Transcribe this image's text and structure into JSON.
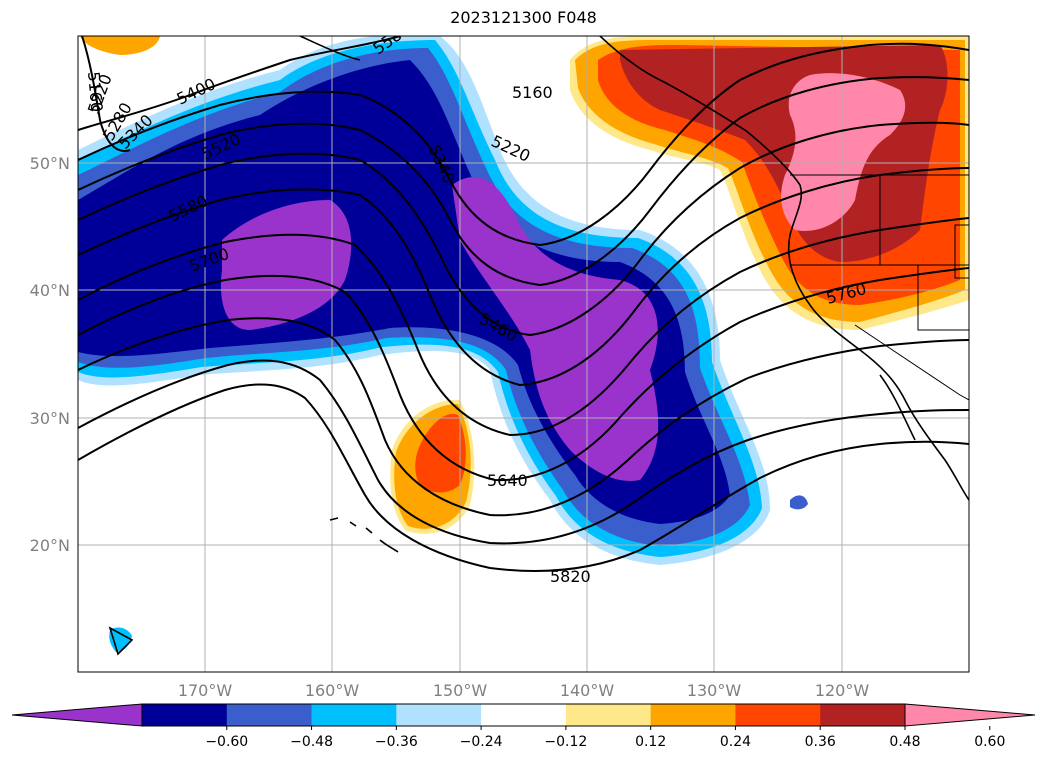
{
  "title": "2023121300 F048",
  "map": {
    "lon_range": [
      -180,
      -110
    ],
    "lat_range": [
      10,
      60
    ],
    "lat_ticks": [
      {
        "label": "50°N"
      },
      {
        "label": "40°N"
      },
      {
        "label": "30°N"
      },
      {
        "label": "20°N"
      }
    ],
    "lon_ticks": [
      {
        "label": "170°W"
      },
      {
        "label": "160°W"
      },
      {
        "label": "150°W"
      },
      {
        "label": "140°W"
      },
      {
        "label": "130°W"
      },
      {
        "label": "120°W"
      }
    ],
    "grid": true
  },
  "contours": {
    "color": "#000000",
    "labels": [
      "5160",
      "5220",
      "5280",
      "5340",
      "5400",
      "5520",
      "5580",
      "5700",
      "5160",
      "5220",
      "5340",
      "5460",
      "5640",
      "5820",
      "5760",
      "5580"
    ]
  },
  "colorbar": {
    "colors": [
      "#9933cc",
      "#000099",
      "#3a5fcd",
      "#00bfff",
      "#b0e2ff",
      "#ffffff",
      "#ffe88a",
      "#ffa500",
      "#ff4500",
      "#b22222",
      "#ff88aa"
    ],
    "tick_labels": [
      "−0.60",
      "−0.48",
      "−0.36",
      "−0.24",
      "−0.12",
      "0.12",
      "0.24",
      "0.36",
      "0.48",
      "0.60"
    ]
  }
}
